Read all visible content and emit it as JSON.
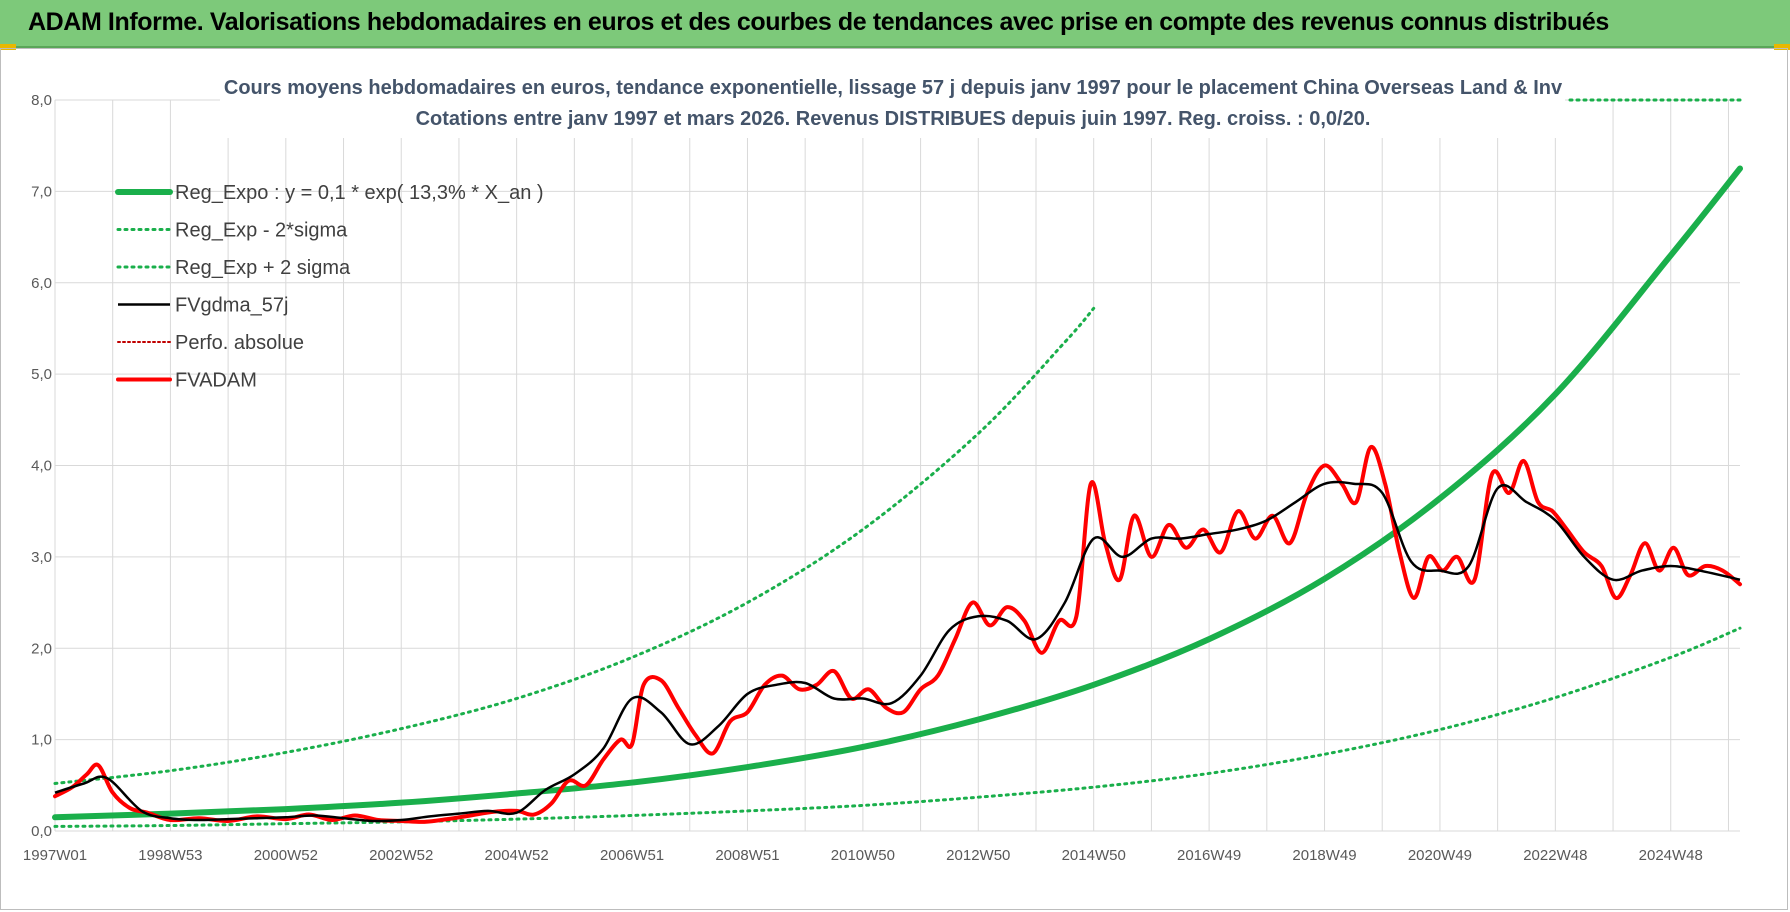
{
  "header": {
    "title": "ADAM Informe. Valorisations hebdomadaires en euros et des courbes de tendances avec prise en compte des revenus connus distribués"
  },
  "chart_data": {
    "type": "line",
    "title_line1": "Cours moyens hebdomadaires en euros, tendance exponentielle, lissage 57 j depuis janv 1997 pour le placement China Overseas Land & Inv",
    "title_line2": "Cotations entre janv 1997 et mars 2026. Revenus DISTRIBUES depuis juin 1997. Reg. croiss. : 0,0/20.",
    "xlabel": "",
    "ylabel": "",
    "ylim": [
      0,
      8
    ],
    "xlim": [
      1997.0,
      2026.2
    ],
    "y_ticks": [
      "0,0",
      "1,0",
      "2,0",
      "3,0",
      "4,0",
      "5,0",
      "6,0",
      "7,0",
      "8,0"
    ],
    "x_ticks": [
      {
        "label": "1997W01",
        "x": 1997.0
      },
      {
        "label": "1998W53",
        "x": 1999.0
      },
      {
        "label": "2000W52",
        "x": 2001.0
      },
      {
        "label": "2002W52",
        "x": 2003.0
      },
      {
        "label": "2004W52",
        "x": 2005.0
      },
      {
        "label": "2006W51",
        "x": 2007.0
      },
      {
        "label": "2008W51",
        "x": 2009.0
      },
      {
        "label": "2010W50",
        "x": 2011.0
      },
      {
        "label": "2012W50",
        "x": 2013.0
      },
      {
        "label": "2014W50",
        "x": 2015.0
      },
      {
        "label": "2016W49",
        "x": 2017.0
      },
      {
        "label": "2018W49",
        "x": 2019.0
      },
      {
        "label": "2020W49",
        "x": 2021.0
      },
      {
        "label": "2022W48",
        "x": 2023.0
      },
      {
        "label": "2024W48",
        "x": 2025.0
      }
    ],
    "grid": true,
    "legend_position": "top-left",
    "series": [
      {
        "name": "Reg_Expo : y = 0,1 * exp( 13,3% *  X_an )",
        "color": "#1aaf4b",
        "style": "solid-thick",
        "x": [
          1997.0,
          1999.0,
          2001.0,
          2003.0,
          2005.0,
          2007.0,
          2009.0,
          2011.0,
          2013.0,
          2015.0,
          2017.0,
          2019.0,
          2021.0,
          2023.0,
          2025.0,
          2026.2
        ],
        "values": [
          0.15,
          0.19,
          0.24,
          0.31,
          0.41,
          0.53,
          0.7,
          0.92,
          1.22,
          1.6,
          2.1,
          2.76,
          3.64,
          4.78,
          6.3,
          7.25
        ]
      },
      {
        "name": "Reg_Exp - 2*sigma",
        "color": "#1aaf4b",
        "style": "dotted",
        "x": [
          1997.0,
          1999.0,
          2001.0,
          2003.0,
          2005.0,
          2007.0,
          2009.0,
          2011.0,
          2013.0,
          2015.0,
          2017.0,
          2019.0,
          2021.0,
          2023.0,
          2025.0,
          2026.2
        ],
        "values": [
          0.05,
          0.06,
          0.08,
          0.1,
          0.13,
          0.17,
          0.22,
          0.28,
          0.37,
          0.48,
          0.63,
          0.84,
          1.11,
          1.46,
          1.9,
          2.22
        ]
      },
      {
        "name": "Reg_Exp + 2 sigma",
        "color": "#1aaf4b",
        "style": "dotted",
        "x": [
          1997.0,
          1999.0,
          2001.0,
          2003.0,
          2005.0,
          2007.0,
          2009.0,
          2011.0,
          2013.0,
          2014.5,
          2015.0
        ],
        "values": [
          0.52,
          0.66,
          0.86,
          1.12,
          1.45,
          1.9,
          2.5,
          3.3,
          4.35,
          5.35,
          5.72
        ]
      },
      {
        "name": "FVgdma_57j",
        "color": "#000000",
        "style": "solid",
        "x": [
          1997.0,
          1997.5,
          1997.9,
          1998.5,
          1999.0,
          1999.5,
          2000.0,
          2000.5,
          2001.0,
          2001.5,
          2002.0,
          2002.5,
          2003.0,
          2003.5,
          2004.0,
          2004.5,
          2005.0,
          2005.5,
          2006.0,
          2006.5,
          2007.0,
          2007.5,
          2008.0,
          2008.5,
          2009.0,
          2009.5,
          2010.0,
          2010.5,
          2011.0,
          2011.5,
          2012.0,
          2012.5,
          2013.0,
          2013.5,
          2014.0,
          2014.5,
          2015.0,
          2015.5,
          2016.0,
          2016.5,
          2017.0,
          2017.5,
          2018.0,
          2018.5,
          2019.0,
          2019.5,
          2020.0,
          2020.5,
          2021.0,
          2021.5,
          2022.0,
          2022.5,
          2023.0,
          2023.5,
          2024.0,
          2024.5,
          2025.0,
          2025.5,
          2026.2
        ],
        "values": [
          0.42,
          0.52,
          0.58,
          0.22,
          0.14,
          0.12,
          0.13,
          0.14,
          0.15,
          0.17,
          0.14,
          0.11,
          0.12,
          0.16,
          0.19,
          0.22,
          0.2,
          0.45,
          0.62,
          0.9,
          1.45,
          1.3,
          0.95,
          1.15,
          1.5,
          1.6,
          1.62,
          1.45,
          1.45,
          1.4,
          1.7,
          2.2,
          2.35,
          2.3,
          2.1,
          2.5,
          3.2,
          3.0,
          3.2,
          3.2,
          3.25,
          3.3,
          3.4,
          3.6,
          3.8,
          3.8,
          3.7,
          2.95,
          2.85,
          2.9,
          3.75,
          3.6,
          3.4,
          3.0,
          2.75,
          2.85,
          2.9,
          2.85,
          2.75
        ]
      },
      {
        "name": "Perfo. absolue",
        "color": "#c00000",
        "style": "dotted",
        "x": [],
        "values": []
      },
      {
        "name": "FVADAM",
        "color": "#ff0000",
        "style": "solid-thick",
        "x": [
          1997.0,
          1997.3,
          1997.55,
          1997.75,
          1998.0,
          1998.3,
          1998.6,
          1999.0,
          1999.5,
          2000.0,
          2000.5,
          2001.0,
          2001.4,
          2001.8,
          2002.2,
          2002.6,
          2003.0,
          2003.4,
          2003.8,
          2004.2,
          2004.6,
          2005.0,
          2005.3,
          2005.6,
          2005.9,
          2006.2,
          2006.5,
          2006.8,
          2007.0,
          2007.2,
          2007.5,
          2007.8,
          2008.1,
          2008.4,
          2008.7,
          2009.0,
          2009.3,
          2009.6,
          2009.9,
          2010.2,
          2010.5,
          2010.8,
          2011.1,
          2011.4,
          2011.7,
          2012.0,
          2012.3,
          2012.6,
          2012.9,
          2013.2,
          2013.5,
          2013.8,
          2014.1,
          2014.4,
          2014.7,
          2014.95,
          2015.2,
          2015.45,
          2015.7,
          2016.0,
          2016.3,
          2016.6,
          2016.9,
          2017.2,
          2017.5,
          2017.8,
          2018.1,
          2018.4,
          2018.7,
          2019.0,
          2019.3,
          2019.55,
          2019.8,
          2020.05,
          2020.3,
          2020.55,
          2020.8,
          2021.05,
          2021.3,
          2021.6,
          2021.9,
          2022.2,
          2022.45,
          2022.7,
          2022.95,
          2023.2,
          2023.5,
          2023.8,
          2024.05,
          2024.3,
          2024.55,
          2024.8,
          2025.05,
          2025.3,
          2025.6,
          2025.9,
          2026.2
        ],
        "values": [
          0.38,
          0.48,
          0.62,
          0.72,
          0.42,
          0.25,
          0.2,
          0.12,
          0.14,
          0.11,
          0.16,
          0.13,
          0.18,
          0.12,
          0.17,
          0.12,
          0.11,
          0.1,
          0.13,
          0.17,
          0.21,
          0.22,
          0.18,
          0.3,
          0.55,
          0.5,
          0.78,
          1.0,
          0.95,
          1.6,
          1.65,
          1.35,
          1.05,
          0.85,
          1.2,
          1.3,
          1.6,
          1.7,
          1.55,
          1.6,
          1.75,
          1.45,
          1.55,
          1.35,
          1.3,
          1.55,
          1.7,
          2.1,
          2.5,
          2.25,
          2.45,
          2.3,
          1.95,
          2.3,
          2.35,
          3.8,
          3.15,
          2.75,
          3.45,
          3.0,
          3.35,
          3.1,
          3.3,
          3.05,
          3.5,
          3.2,
          3.45,
          3.15,
          3.7,
          4.0,
          3.8,
          3.6,
          4.2,
          3.8,
          3.05,
          2.55,
          3.0,
          2.85,
          3.0,
          2.75,
          3.9,
          3.7,
          4.05,
          3.6,
          3.5,
          3.3,
          3.05,
          2.9,
          2.55,
          2.8,
          3.15,
          2.85,
          3.1,
          2.8,
          2.9,
          2.85,
          2.7
        ]
      }
    ]
  }
}
